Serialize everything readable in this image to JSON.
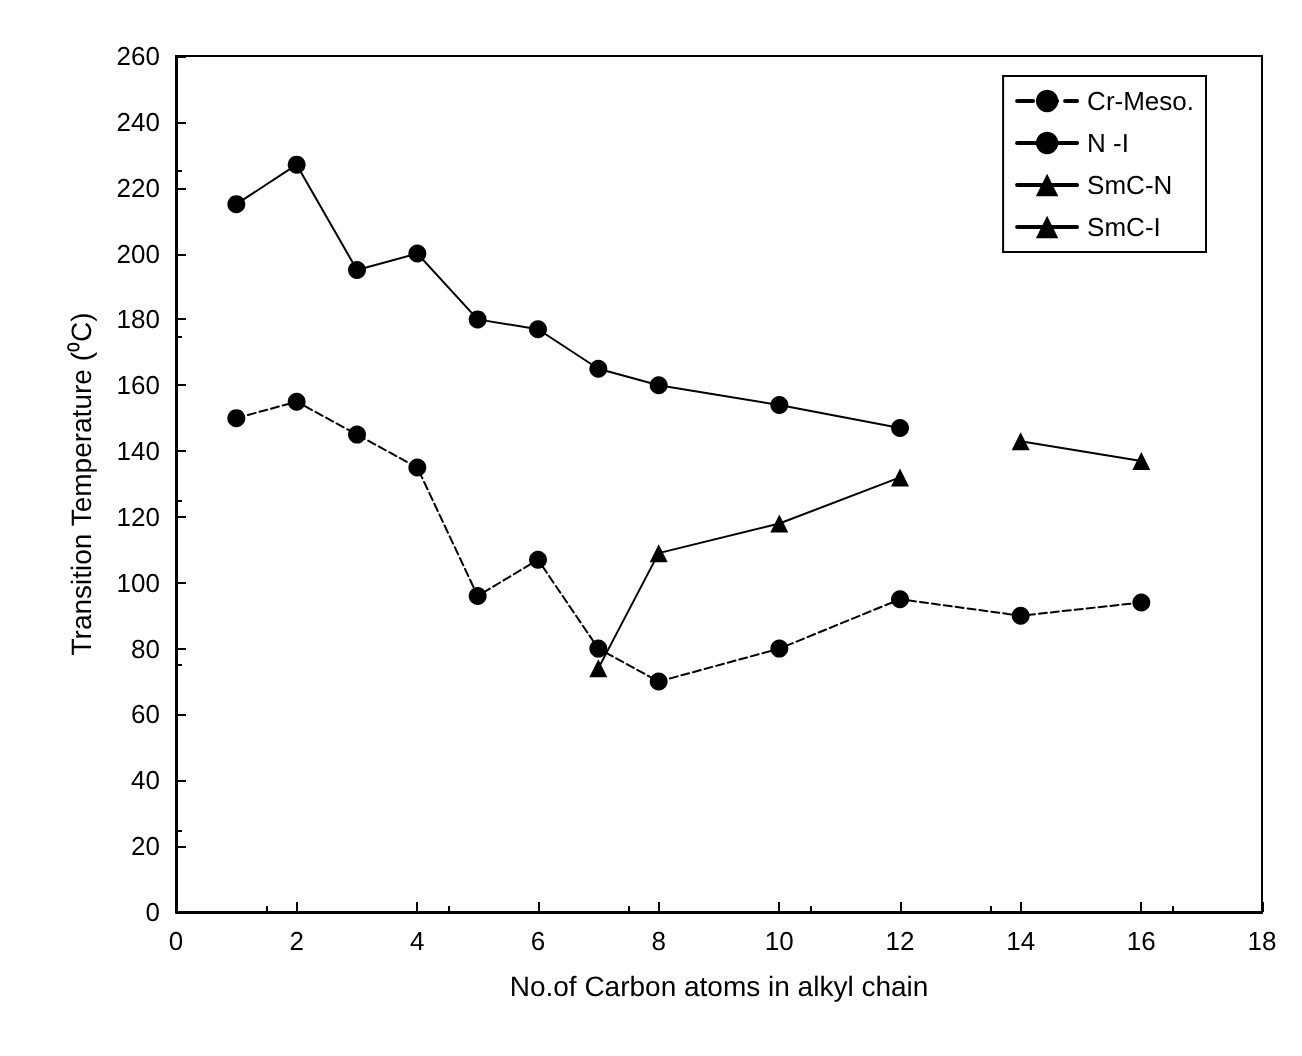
{
  "chart_data": {
    "type": "line",
    "xlabel": "No.of Carbon atoms in alkyl chain",
    "ylabel": "Transition Temperature (⁰C)",
    "xlim": [
      0,
      18
    ],
    "xticks": [
      0,
      2,
      4,
      6,
      8,
      10,
      12,
      14,
      16,
      18
    ],
    "ylim": [
      0,
      260
    ],
    "yticks": [
      0,
      20,
      40,
      60,
      80,
      100,
      120,
      140,
      160,
      180,
      200,
      220,
      240,
      260
    ],
    "grid": false,
    "legend": "top right",
    "series": [
      {
        "name": "Cr-Meso.",
        "color": "#000000",
        "marker": "circle",
        "line_style": "dashed",
        "x": [
          1,
          2,
          3,
          4,
          5,
          6,
          7,
          8,
          10,
          12,
          14,
          16
        ],
        "values": [
          150,
          155,
          145,
          135,
          96,
          107,
          80,
          70,
          80,
          95,
          90,
          94
        ]
      },
      {
        "name": "N -I",
        "color": "#000000",
        "marker": "circle",
        "line_style": "solid",
        "x": [
          1,
          2,
          3,
          4,
          5,
          6,
          7,
          8,
          10,
          12
        ],
        "values": [
          215,
          227,
          195,
          200,
          180,
          177,
          165,
          160,
          154,
          147
        ]
      },
      {
        "name": "SmC-N",
        "color": "#000000",
        "marker": "triangle",
        "line_style": "solid",
        "x": [
          7,
          8,
          10,
          12
        ],
        "values": [
          74,
          109,
          118,
          132
        ]
      },
      {
        "name": "SmC-I",
        "color": "#000000",
        "marker": "triangle",
        "line_style": "solid",
        "x": [
          14,
          16
        ],
        "values": [
          143,
          137
        ]
      }
    ]
  }
}
